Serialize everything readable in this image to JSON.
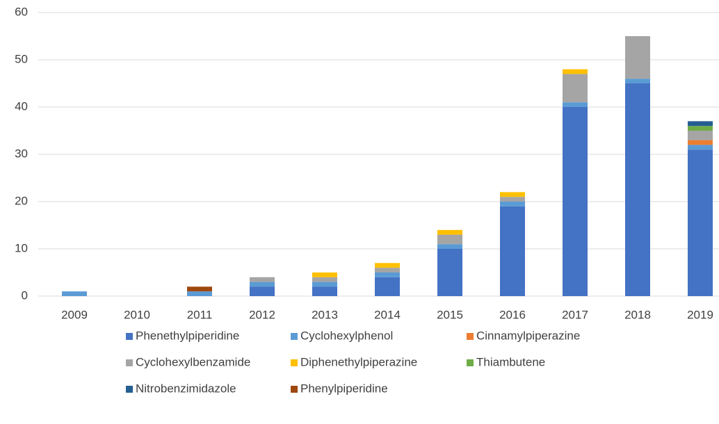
{
  "chart_data": {
    "type": "stacked_bar",
    "categories": [
      "2009",
      "2010",
      "2011",
      "2012",
      "2013",
      "2014",
      "2015",
      "2016",
      "2017",
      "2018",
      "2019"
    ],
    "series": [
      {
        "name": "Phenethylpiperidine",
        "color": "#4472c4",
        "values": [
          0,
          0,
          0,
          2,
          2,
          4,
          10,
          19,
          40,
          45,
          31
        ]
      },
      {
        "name": "Cyclohexylphenol",
        "color": "#5b9bd5",
        "values": [
          1,
          0,
          1,
          1,
          1,
          1,
          1,
          1,
          1,
          1,
          1
        ]
      },
      {
        "name": "Cinnamylpiperazine",
        "color": "#ed7d31",
        "values": [
          0,
          0,
          0,
          0,
          0,
          0,
          0,
          0,
          0,
          0,
          1
        ]
      },
      {
        "name": "Cyclohexylbenzamide",
        "color": "#a5a5a5",
        "values": [
          0,
          0,
          0,
          1,
          1,
          1,
          2,
          1,
          6,
          9,
          2
        ]
      },
      {
        "name": "Diphenethylpiperazine",
        "color": "#ffc000",
        "values": [
          0,
          0,
          0,
          0,
          1,
          1,
          1,
          1,
          1,
          0,
          0
        ]
      },
      {
        "name": "Thiambutene",
        "color": "#70ad47",
        "values": [
          0,
          0,
          0,
          0,
          0,
          0,
          0,
          0,
          0,
          0,
          1
        ]
      },
      {
        "name": "Nitrobenzimidazole",
        "color": "#255e91",
        "values": [
          0,
          0,
          0,
          0,
          0,
          0,
          0,
          0,
          0,
          0,
          1
        ]
      },
      {
        "name": "Phenylpiperidine",
        "color": "#9e480e",
        "values": [
          0,
          0,
          1,
          0,
          0,
          0,
          0,
          0,
          0,
          0,
          0
        ]
      }
    ],
    "ylim": [
      0,
      60
    ],
    "yticks": [
      0,
      10,
      20,
      30,
      40,
      50,
      60
    ],
    "grid": true,
    "legend": "bottom"
  }
}
